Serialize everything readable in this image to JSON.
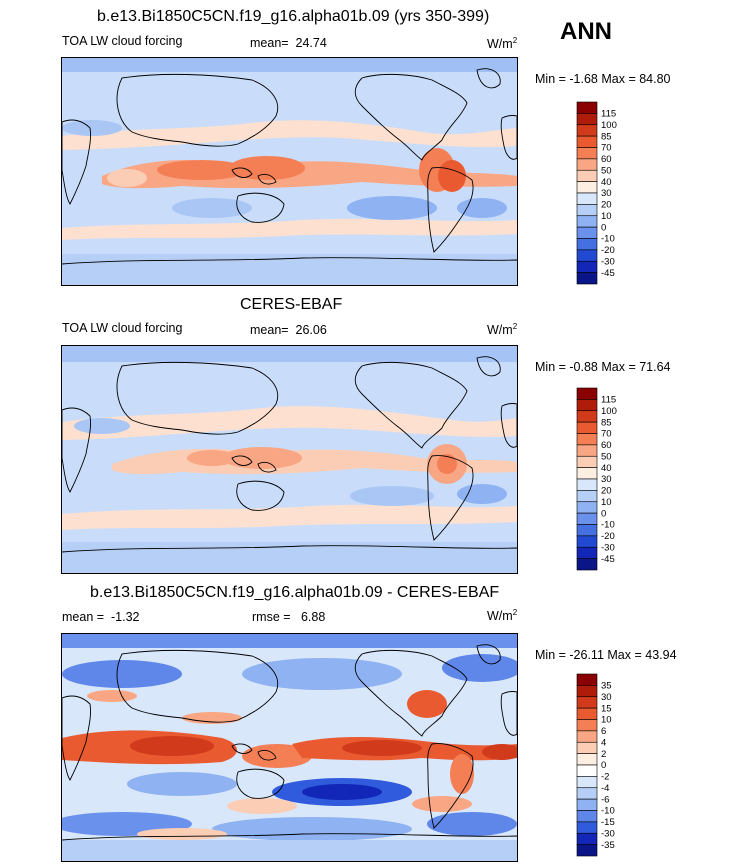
{
  "season": "ANN",
  "panels": [
    {
      "title": "b.e13.Bi1850C5CN.f19_g16.alpha01b.09 (yrs 350-399)",
      "left_label": "TOA LW cloud forcing",
      "mean_label": "mean=",
      "mean_value": "24.74",
      "rmse_label": "",
      "rmse_value": "",
      "units": "W/m",
      "units_exp": "2",
      "minmax": "Min =  -1.68 Max =  84.80",
      "colorbar_levels": [
        "115",
        "100",
        "85",
        "70",
        "60",
        "50",
        "40",
        "30",
        "20",
        "10",
        "0",
        "-10",
        "-20",
        "-30",
        "-45"
      ],
      "colorbar_colors": [
        "#8b0000",
        "#b01c0a",
        "#d23a1c",
        "#ea5a30",
        "#f57f55",
        "#f9a684",
        "#fbcdb4",
        "#fdeee2",
        "#d9e7fb",
        "#b6cff7",
        "#8fb2f2",
        "#6a91ec",
        "#4470e2",
        "#2149d2",
        "#1226b8",
        "#0a1587"
      ]
    },
    {
      "title": "CERES-EBAF",
      "left_label": "TOA LW cloud forcing",
      "mean_label": "mean=",
      "mean_value": "26.06",
      "rmse_label": "",
      "rmse_value": "",
      "units": "W/m",
      "units_exp": "2",
      "minmax": "Min =  -0.88 Max =  71.64",
      "colorbar_levels": [
        "115",
        "100",
        "85",
        "70",
        "60",
        "50",
        "40",
        "30",
        "20",
        "10",
        "0",
        "-10",
        "-20",
        "-30",
        "-45"
      ],
      "colorbar_colors": [
        "#8b0000",
        "#b01c0a",
        "#d23a1c",
        "#ea5a30",
        "#f57f55",
        "#f9a684",
        "#fbcdb4",
        "#fdeee2",
        "#d9e7fb",
        "#b6cff7",
        "#8fb2f2",
        "#6a91ec",
        "#4470e2",
        "#2149d2",
        "#1226b8",
        "#0a1587"
      ]
    },
    {
      "title": "b.e13.Bi1850C5CN.f19_g16.alpha01b.09 - CERES-EBAF",
      "left_label": "",
      "mean_label": "mean =",
      "mean_value": "-1.32",
      "rmse_label": "rmse =",
      "rmse_value": "6.88",
      "units": "W/m",
      "units_exp": "2",
      "minmax": "Min = -26.11 Max =  43.94",
      "colorbar_levels": [
        "35",
        "30",
        "15",
        "10",
        "6",
        "4",
        "2",
        "0",
        "-2",
        "-4",
        "-6",
        "-10",
        "-15",
        "-30",
        "-35"
      ],
      "colorbar_colors": [
        "#8b0000",
        "#b01c0a",
        "#d23a1c",
        "#ea5a30",
        "#f57f55",
        "#f9a684",
        "#fbcdb4",
        "#fdeee2",
        "#ffffff",
        "#d9e7fb",
        "#b6cff7",
        "#8fb2f2",
        "#5f87ea",
        "#2f5bdc",
        "#1226b8",
        "#0a1587"
      ]
    }
  ]
}
